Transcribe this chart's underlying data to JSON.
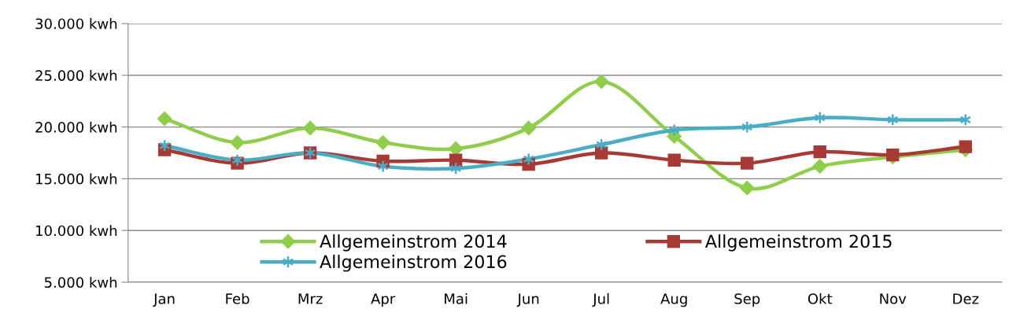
{
  "chart_data": {
    "type": "line",
    "categories": [
      "Jan",
      "Feb",
      "Mrz",
      "Apr",
      "Mai",
      "Jun",
      "Jul",
      "Aug",
      "Sep",
      "Okt",
      "Nov",
      "Dez"
    ],
    "series": [
      {
        "name": "Allgemeinstrom 2014",
        "color": "#8fce4a",
        "marker": "diamond",
        "values": [
          20800,
          18500,
          19900,
          18500,
          17900,
          19900,
          24400,
          19100,
          14100,
          16200,
          17100,
          17800
        ]
      },
      {
        "name": "Allgemeinstrom 2015",
        "color": "#a83a35",
        "marker": "square",
        "values": [
          17800,
          16500,
          17500,
          16700,
          16800,
          16400,
          17500,
          16800,
          16500,
          17600,
          17300,
          18100
        ]
      },
      {
        "name": "Allgemeinstrom 2016",
        "color": "#4bacc6",
        "marker": "cross",
        "values": [
          18200,
          16800,
          17500,
          16200,
          16000,
          16900,
          18300,
          19700,
          20000,
          20900,
          20700,
          20700
        ]
      }
    ],
    "ylim": [
      5000,
      30000
    ],
    "yticks": [
      {
        "value": 5000,
        "label": "5.000 kwh"
      },
      {
        "value": 10000,
        "label": "10.000 kwh"
      },
      {
        "value": 15000,
        "label": "15.000 kwh"
      },
      {
        "value": 20000,
        "label": "20.000 kwh"
      },
      {
        "value": 25000,
        "label": "25.000 kwh"
      },
      {
        "value": 30000,
        "label": "30.000 kwh"
      }
    ],
    "grid": "y",
    "legend": "bottom left",
    "line_style": "solid"
  }
}
